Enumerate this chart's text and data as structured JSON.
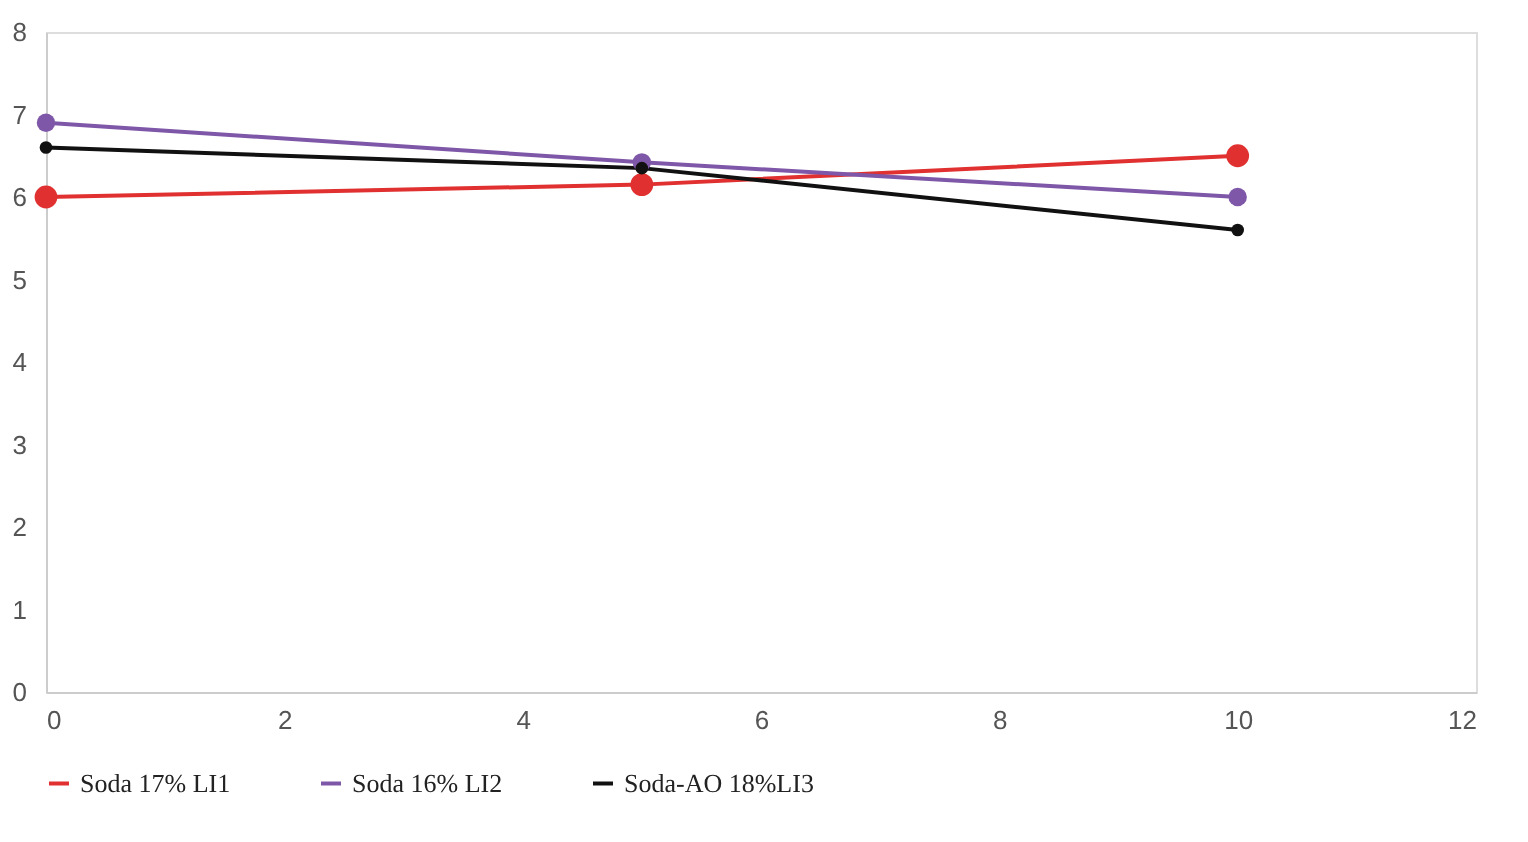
{
  "chart_data": {
    "type": "line",
    "x": [
      0,
      5,
      10
    ],
    "xlim": [
      0,
      12
    ],
    "xticks": [
      0,
      2,
      4,
      6,
      8,
      10,
      12
    ],
    "ylim": [
      0,
      8
    ],
    "yticks": [
      0,
      1,
      2,
      3,
      4,
      5,
      6,
      7,
      8
    ],
    "grid": false,
    "legend": "bottom",
    "marker": "circle",
    "series": [
      {
        "name": "Soda 17% LI1",
        "color": "#e03030",
        "values": [
          6.0,
          6.15,
          6.5
        ]
      },
      {
        "name": "Soda 16% LI2",
        "color": "#7e57a8",
        "values": [
          6.9,
          6.42,
          6.0
        ]
      },
      {
        "name": "Soda-AO 18%LI3",
        "color": "#111111",
        "values": [
          6.6,
          6.35,
          5.6
        ]
      }
    ]
  }
}
